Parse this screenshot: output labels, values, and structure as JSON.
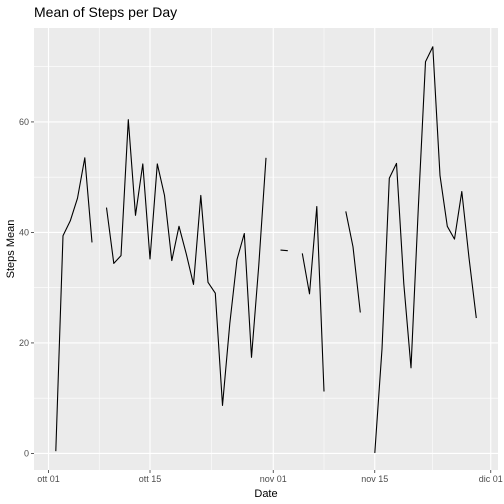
{
  "chart_data": {
    "type": "line",
    "title": "Mean of Steps per Day",
    "xlabel": "Date",
    "ylabel": "Steps Mean",
    "x_ticks": [
      "2012-10-01",
      "2012-10-15",
      "2012-11-01",
      "2012-11-15",
      "2012-12-01"
    ],
    "x_tick_labels": [
      "ott 01",
      "ott 15",
      "nov 01",
      "nov 15",
      "dic 01"
    ],
    "y_ticks": [
      0,
      20,
      40,
      60
    ],
    "xlim": [
      "2012-09-29",
      "2012-12-02"
    ],
    "ylim": [
      -3,
      77
    ],
    "grid": true,
    "panel_background": "#ebebeb",
    "grid_color": "#ffffff",
    "line_color": "#000000",
    "x": [
      "2012-10-01",
      "2012-10-02",
      "2012-10-03",
      "2012-10-04",
      "2012-10-05",
      "2012-10-06",
      "2012-10-07",
      "2012-10-08",
      "2012-10-09",
      "2012-10-10",
      "2012-10-11",
      "2012-10-12",
      "2012-10-13",
      "2012-10-14",
      "2012-10-15",
      "2012-10-16",
      "2012-10-17",
      "2012-10-18",
      "2012-10-19",
      "2012-10-20",
      "2012-10-21",
      "2012-10-22",
      "2012-10-23",
      "2012-10-24",
      "2012-10-25",
      "2012-10-26",
      "2012-10-27",
      "2012-10-28",
      "2012-10-29",
      "2012-10-30",
      "2012-10-31",
      "2012-11-01",
      "2012-11-02",
      "2012-11-03",
      "2012-11-04",
      "2012-11-05",
      "2012-11-06",
      "2012-11-07",
      "2012-11-08",
      "2012-11-09",
      "2012-11-10",
      "2012-11-11",
      "2012-11-12",
      "2012-11-13",
      "2012-11-14",
      "2012-11-15",
      "2012-11-16",
      "2012-11-17",
      "2012-11-18",
      "2012-11-19",
      "2012-11-20",
      "2012-11-21",
      "2012-11-22",
      "2012-11-23",
      "2012-11-24",
      "2012-11-25",
      "2012-11-26",
      "2012-11-27",
      "2012-11-28",
      "2012-11-29",
      "2012-11-30"
    ],
    "values": [
      null,
      0.4,
      39.4,
      42.1,
      46.2,
      53.5,
      38.2,
      null,
      44.5,
      34.4,
      35.8,
      60.4,
      43.1,
      52.4,
      35.2,
      52.4,
      46.7,
      34.9,
      41.1,
      36.1,
      30.6,
      46.7,
      30.97,
      29.0,
      8.7,
      23.5,
      35.1,
      39.8,
      17.4,
      34.1,
      53.5,
      null,
      36.8,
      36.7,
      null,
      36.2,
      28.9,
      44.7,
      11.2,
      null,
      null,
      43.8,
      37.4,
      25.5,
      null,
      0.1,
      18.9,
      49.8,
      52.5,
      30.7,
      15.5,
      44.4,
      70.9,
      73.6,
      50.3,
      41.1,
      38.8,
      47.4,
      35.4,
      24.5,
      null
    ]
  }
}
